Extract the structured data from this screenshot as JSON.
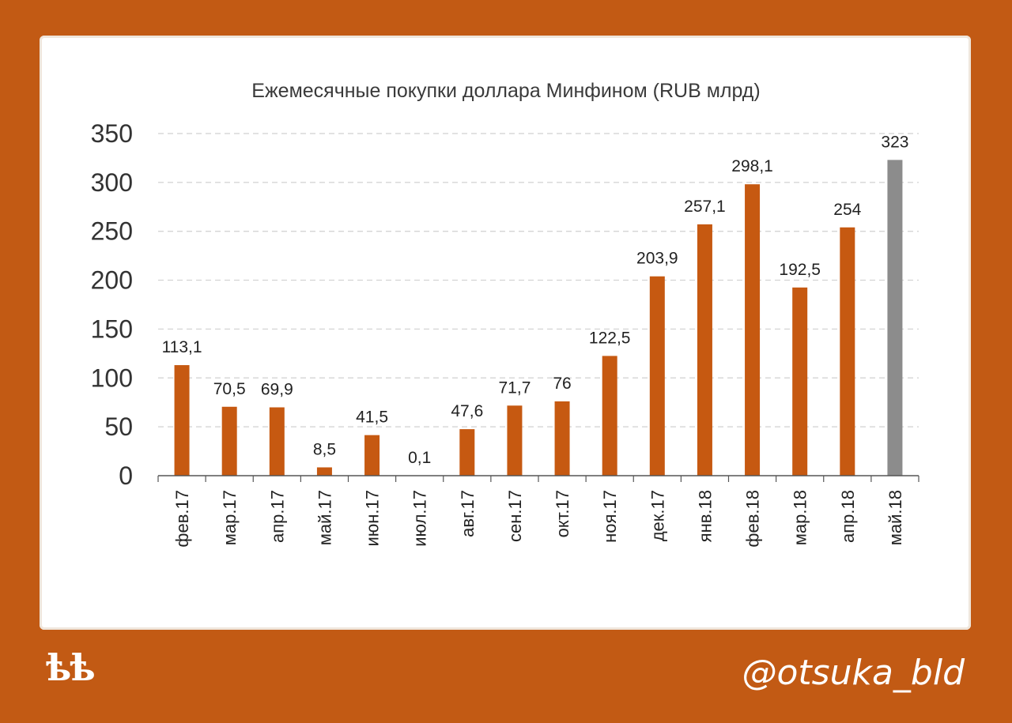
{
  "chart_data": {
    "type": "bar",
    "title": "Ежемесячные  покупки доллара  Минфином  (RUB млрд)",
    "categories": [
      "фев.17",
      "мар.17",
      "апр.17",
      "май.17",
      "июн.17",
      "июл.17",
      "авг.17",
      "сен.17",
      "окт.17",
      "ноя.17",
      "дек.17",
      "янв.18",
      "фев.18",
      "мар.18",
      "апр.18",
      "май.18"
    ],
    "values": [
      113.1,
      70.5,
      69.9,
      8.5,
      41.5,
      0.1,
      47.6,
      71.7,
      76,
      122.5,
      203.9,
      257.1,
      298.1,
      192.5,
      254,
      323
    ],
    "value_labels": [
      "113,1",
      "70,5",
      "69,9",
      "8,5",
      "41,5",
      "0,1",
      "47,6",
      "71,7",
      "76",
      "122,5",
      "203,9",
      "257,1",
      "298,1",
      "192,5",
      "254",
      "323"
    ],
    "yticks": [
      0,
      50,
      100,
      150,
      200,
      250,
      300,
      350
    ],
    "ylim": [
      0,
      350
    ],
    "grid": true,
    "bar_color": "#c65911",
    "highlight_color": "#8c8c8c",
    "highlight_index": 15,
    "xlabel": "",
    "ylabel": ""
  },
  "branding": {
    "logo_text": "ѣѣ",
    "handle": "@otsuka_bld"
  },
  "colors": {
    "background": "#c25a14",
    "card": "#ffffff"
  }
}
